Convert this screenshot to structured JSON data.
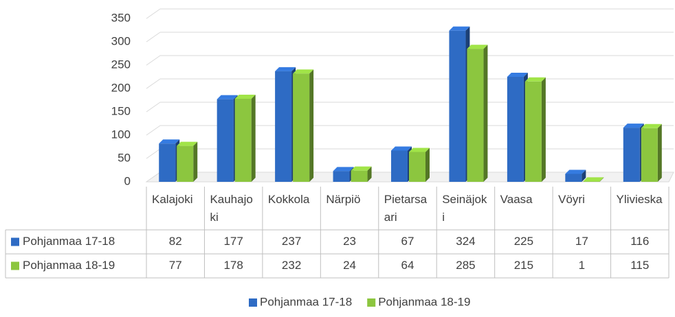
{
  "chart_data": {
    "type": "bar",
    "categories": [
      "Kalajoki",
      "Kauhajoki",
      "Kokkola",
      "Närpiö",
      "Pietarsaari",
      "Seinäjoki",
      "Vaasa",
      "Vöyri",
      "Ylivieska"
    ],
    "series": [
      {
        "name": "Pohjanmaa 17-18",
        "color": "#2e6bc4",
        "values": [
          82,
          177,
          237,
          23,
          67,
          324,
          225,
          17,
          116
        ]
      },
      {
        "name": "Pohjanmaa 18-19",
        "color": "#8cc63f",
        "values": [
          77,
          178,
          232,
          24,
          64,
          285,
          215,
          1,
          115
        ]
      }
    ],
    "ylim": [
      0,
      350
    ],
    "yticks": [
      0,
      50,
      100,
      150,
      200,
      250,
      300,
      350
    ],
    "grid": true,
    "legend": "bottom",
    "data_table": true
  }
}
